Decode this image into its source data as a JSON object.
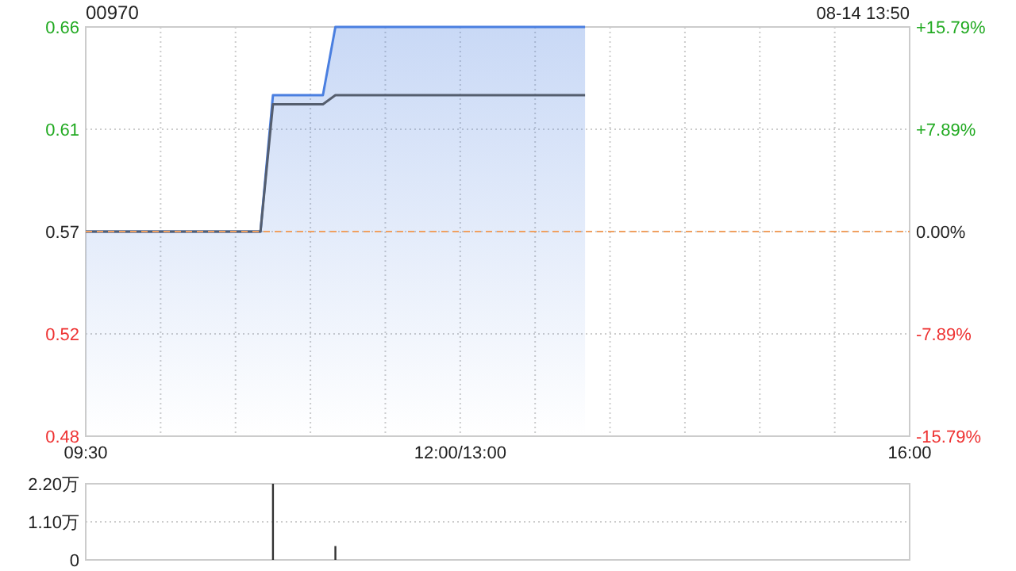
{
  "chart_data": [
    {
      "type": "area",
      "title": "00970",
      "annotations": [
        "08-14 13:50"
      ],
      "categories": [
        "09:30",
        null,
        null,
        null,
        null,
        null,
        null,
        null,
        null,
        null,
        null,
        null,
        null,
        null,
        null,
        null,
        null,
        null,
        null,
        null,
        null,
        null,
        null,
        null,
        null,
        null,
        null,
        null,
        null,
        null,
        "12:00/13:00",
        null,
        null,
        null,
        null,
        null,
        null,
        null,
        null,
        null,
        null,
        null,
        null,
        null,
        null,
        null,
        null,
        null,
        null,
        null,
        null,
        null,
        null,
        null,
        null,
        null,
        null,
        null,
        null,
        null,
        null,
        null,
        null,
        null,
        null,
        null,
        "16:00"
      ],
      "ylim": [
        0.48,
        0.66
      ],
      "yticks": [
        {
          "value": 0.48,
          "label": "0.48"
        },
        {
          "value": 0.525,
          "label": "0.52"
        },
        {
          "value": 0.57,
          "label": "0.57"
        },
        {
          "value": 0.615,
          "label": "0.61"
        },
        {
          "value": 0.66,
          "label": "0.66"
        }
      ],
      "y2lim": [
        -15.79,
        15.79
      ],
      "y2ticks": [
        {
          "value": -15.79,
          "label": "-15.79%"
        },
        {
          "value": -7.89,
          "label": "-7.89%"
        },
        {
          "value": 0,
          "label": "0.00%"
        },
        {
          "value": 7.89,
          "label": "+7.89%"
        },
        {
          "value": 15.79,
          "label": "+15.79%"
        }
      ],
      "grid": true,
      "ref_lines": [
        {
          "axis": "y",
          "value": 0.57,
          "label": null,
          "color": "#f0a060",
          "line_style": "dashed"
        }
      ],
      "series": [
        {
          "color": "#4a7fe0",
          "values": [
            0.57,
            0.57,
            0.57,
            0.57,
            0.57,
            0.57,
            0.57,
            0.57,
            0.57,
            0.57,
            0.57,
            0.57,
            0.57,
            0.57,
            0.57,
            0.63,
            0.63,
            0.63,
            0.63,
            0.63,
            0.66,
            0.66,
            0.66,
            0.66,
            0.66,
            0.66,
            0.66,
            0.66,
            0.66,
            0.66,
            0.66,
            0.66,
            0.66,
            0.66,
            0.66,
            0.66,
            0.66,
            0.66,
            0.66,
            0.66,
            0.66,
            null,
            null,
            null,
            null,
            null,
            null,
            null,
            null,
            null,
            null,
            null,
            null,
            null,
            null,
            null,
            null,
            null,
            null,
            null,
            null,
            null,
            null,
            null,
            null,
            null,
            null
          ]
        },
        {
          "type": "line",
          "color": "#555e6e",
          "values": [
            0.57,
            0.57,
            0.57,
            0.57,
            0.57,
            0.57,
            0.57,
            0.57,
            0.57,
            0.57,
            0.57,
            0.57,
            0.57,
            0.57,
            0.57,
            0.626,
            0.626,
            0.626,
            0.626,
            0.626,
            0.63,
            0.63,
            0.63,
            0.63,
            0.63,
            0.63,
            0.63,
            0.63,
            0.63,
            0.63,
            0.63,
            0.63,
            0.63,
            0.63,
            0.63,
            0.63,
            0.63,
            0.63,
            0.63,
            0.63,
            0.63,
            null,
            null,
            null,
            null,
            null,
            null,
            null,
            null,
            null,
            null,
            null,
            null,
            null,
            null,
            null,
            null,
            null,
            null,
            null,
            null,
            null,
            null,
            null,
            null,
            null,
            null
          ]
        }
      ]
    },
    {
      "type": "bar",
      "tick_labels": "y",
      "grid": "y",
      "categories": [
        null,
        null,
        null,
        null,
        null,
        null,
        null,
        null,
        null,
        null,
        null,
        null,
        null,
        null,
        null,
        null,
        null,
        null,
        null,
        null,
        null,
        null,
        null,
        null,
        null,
        null,
        null,
        null,
        null,
        null,
        null,
        null,
        null,
        null,
        null,
        null,
        null,
        null,
        null,
        null,
        null,
        null,
        null,
        null,
        null,
        null,
        null,
        null,
        null,
        null,
        null,
        null,
        null,
        null,
        null,
        null,
        null,
        null,
        null,
        null,
        null,
        null,
        null,
        null,
        null,
        null,
        null
      ],
      "ylim": [
        0,
        2.2
      ],
      "yticks": [
        {
          "value": 0,
          "label": "0"
        },
        {
          "value": 1.1,
          "label": "1.10万"
        },
        {
          "value": 2.2,
          "label": "2.20万"
        }
      ],
      "series": [
        {
          "color": "#333333",
          "values": [
            0,
            0,
            0,
            0,
            0,
            0,
            0,
            0,
            0,
            0,
            0,
            0,
            0,
            0,
            0,
            2.2,
            0,
            0,
            0,
            0,
            0.4,
            0,
            0,
            0,
            0,
            0,
            0,
            0,
            0,
            0,
            0,
            0,
            0,
            0,
            0,
            0,
            0,
            0,
            0,
            0,
            0,
            null,
            null,
            null,
            null,
            null,
            null,
            null,
            null,
            null,
            null,
            null,
            null,
            null,
            null,
            null,
            null,
            null,
            null,
            null,
            null,
            null,
            null,
            null,
            null,
            null,
            null
          ]
        }
      ]
    }
  ]
}
